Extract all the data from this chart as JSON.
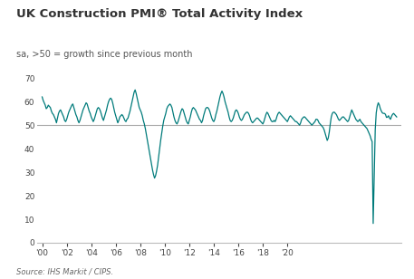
{
  "title": "UK Construction PMI® Total Activity Index",
  "subtitle": "sa, >50 = growth since previous month",
  "source": "Source: IHS Markit / CIPS.",
  "line_color": "#007b7b",
  "reference_line": 50,
  "reference_line_color": "#aaaaaa",
  "ylim": [
    0,
    70
  ],
  "yticks": [
    0,
    10,
    20,
    30,
    40,
    50,
    60,
    70
  ],
  "xtick_labels": [
    "'00",
    "'02",
    "'04",
    "'06",
    "'08",
    "'10",
    "'12",
    "'14",
    "'16",
    "'18",
    "'20"
  ],
  "title_color": "#333333",
  "subtitle_color": "#555555",
  "source_color": "#666666",
  "background_color": "#ffffff",
  "values": [
    62.0,
    60.5,
    59.5,
    58.5,
    57.0,
    57.5,
    58.5,
    58.0,
    57.5,
    56.0,
    55.0,
    54.5,
    53.5,
    52.5,
    51.0,
    53.0,
    55.0,
    56.0,
    56.5,
    55.5,
    54.5,
    53.5,
    52.0,
    51.5,
    52.5,
    54.0,
    55.5,
    56.5,
    57.5,
    58.5,
    59.0,
    57.5,
    56.0,
    54.5,
    53.5,
    52.0,
    51.0,
    52.0,
    53.5,
    55.0,
    56.5,
    57.5,
    58.5,
    59.5,
    59.0,
    57.5,
    56.0,
    55.0,
    53.5,
    52.5,
    51.5,
    52.5,
    54.0,
    55.5,
    57.0,
    57.5,
    57.0,
    56.0,
    54.5,
    53.0,
    52.0,
    53.5,
    55.0,
    56.5,
    58.5,
    60.0,
    61.0,
    61.5,
    61.0,
    59.5,
    57.5,
    55.5,
    54.0,
    52.5,
    51.0,
    52.0,
    53.5,
    54.0,
    54.5,
    54.0,
    53.0,
    52.0,
    51.5,
    52.5,
    53.0,
    54.5,
    56.0,
    58.0,
    60.0,
    62.0,
    64.0,
    65.0,
    63.5,
    61.5,
    59.5,
    57.5,
    56.5,
    55.5,
    54.0,
    52.0,
    50.5,
    48.5,
    46.0,
    43.5,
    41.0,
    38.5,
    36.0,
    33.5,
    31.0,
    29.0,
    27.5,
    28.5,
    30.5,
    33.0,
    36.5,
    40.0,
    43.5,
    46.5,
    49.5,
    52.0,
    53.5,
    55.0,
    57.0,
    58.0,
    58.5,
    59.0,
    58.5,
    57.5,
    55.5,
    53.5,
    52.0,
    51.0,
    50.5,
    51.5,
    53.0,
    54.5,
    56.0,
    57.0,
    56.5,
    55.0,
    53.5,
    52.0,
    51.0,
    50.5,
    52.0,
    53.5,
    55.5,
    57.0,
    57.5,
    57.0,
    56.5,
    55.5,
    54.5,
    53.5,
    52.5,
    52.0,
    51.0,
    52.0,
    54.0,
    55.5,
    57.0,
    57.5,
    57.5,
    57.0,
    56.0,
    54.5,
    53.0,
    52.0,
    51.5,
    52.5,
    54.5,
    56.0,
    58.0,
    60.0,
    62.0,
    63.5,
    64.5,
    63.5,
    62.0,
    60.0,
    58.5,
    57.0,
    55.5,
    53.5,
    52.0,
    51.5,
    52.0,
    53.0,
    54.5,
    56.0,
    56.5,
    56.0,
    55.0,
    53.5,
    52.5,
    52.0,
    52.5,
    53.5,
    54.5,
    55.0,
    55.5,
    55.5,
    55.0,
    54.0,
    52.5,
    51.5,
    51.0,
    51.5,
    52.0,
    52.5,
    53.0,
    53.0,
    52.5,
    52.0,
    51.5,
    51.0,
    50.5,
    51.5,
    53.0,
    54.5,
    55.5,
    55.0,
    54.0,
    53.0,
    52.0,
    51.5,
    51.5,
    52.0,
    51.5,
    52.5,
    54.0,
    55.0,
    55.5,
    55.0,
    54.5,
    54.0,
    53.5,
    53.0,
    52.5,
    52.0,
    51.5,
    52.5,
    53.5,
    54.0,
    53.5,
    53.0,
    52.5,
    52.0,
    51.5,
    51.5,
    51.0,
    50.5,
    50.0,
    51.0,
    52.5,
    53.0,
    53.5,
    53.5,
    53.0,
    52.5,
    52.0,
    51.5,
    51.0,
    50.5,
    50.0,
    50.5,
    51.0,
    51.5,
    52.5,
    52.5,
    52.0,
    51.0,
    50.5,
    50.0,
    49.5,
    49.0,
    48.0,
    46.5,
    45.0,
    43.5,
    44.5,
    47.0,
    50.5,
    53.5,
    55.0,
    55.5,
    55.5,
    55.0,
    54.5,
    53.5,
    52.5,
    52.0,
    52.5,
    53.0,
    53.5,
    53.5,
    53.0,
    52.5,
    52.0,
    51.5,
    52.0,
    53.5,
    55.0,
    56.5,
    55.5,
    54.5,
    53.5,
    52.5,
    52.0,
    51.5,
    52.0,
    52.5,
    51.5,
    51.0,
    50.5,
    50.0,
    49.5,
    49.0,
    48.5,
    47.5,
    46.5,
    45.5,
    44.0,
    43.0,
    8.2,
    28.0,
    48.0,
    55.3,
    58.1,
    59.5,
    58.6,
    57.0,
    56.0,
    55.2,
    55.0,
    55.0,
    54.6,
    53.3,
    53.4,
    54.0,
    53.0,
    52.5,
    53.8,
    54.6,
    55.0,
    54.5,
    54.0,
    53.5
  ]
}
